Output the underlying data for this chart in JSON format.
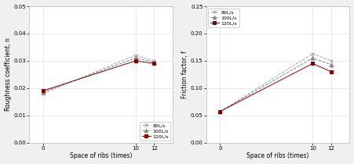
{
  "x": [
    0,
    10,
    12
  ],
  "left_chart": {
    "ylabel": "Roughness coefficient, n",
    "xlabel": "Space of ribs (times)",
    "ylim": [
      0.0,
      0.05
    ],
    "yticks": [
      0.0,
      0.01,
      0.02,
      0.03,
      0.04,
      0.05
    ],
    "series": {
      "80L/s": [
        0.018,
        0.032,
        0.03
      ],
      "100L/s": [
        0.0185,
        0.031,
        0.0295
      ],
      "120L/s": [
        0.019,
        0.03,
        0.029
      ]
    },
    "legend_loc": "lower right"
  },
  "right_chart": {
    "ylabel": "Friction factor, f",
    "xlabel": "Space of ribs (times)",
    "ylim": [
      0.0,
      0.25
    ],
    "yticks": [
      0.0,
      0.05,
      0.1,
      0.15,
      0.2,
      0.25
    ],
    "series": {
      "80L/s": [
        0.057,
        0.163,
        0.15
      ],
      "100L/s": [
        0.057,
        0.155,
        0.143
      ],
      "120L/s": [
        0.057,
        0.145,
        0.13
      ]
    },
    "legend_loc": "upper left"
  },
  "colors": {
    "80L/s": "#aaaaaa",
    "100L/s": "#888888",
    "120L/s": "#8b0000"
  },
  "markers": {
    "80L/s": "x",
    "100L/s": "^",
    "120L/s": "s"
  },
  "linestyles": {
    "80L/s": "--",
    "100L/s": "--",
    "120L/s": "-"
  },
  "bg_color": "#f0f0f0",
  "plot_bg": "#ffffff",
  "grid_color": "#e8e8e8",
  "spine_color": "#bbbbbb"
}
